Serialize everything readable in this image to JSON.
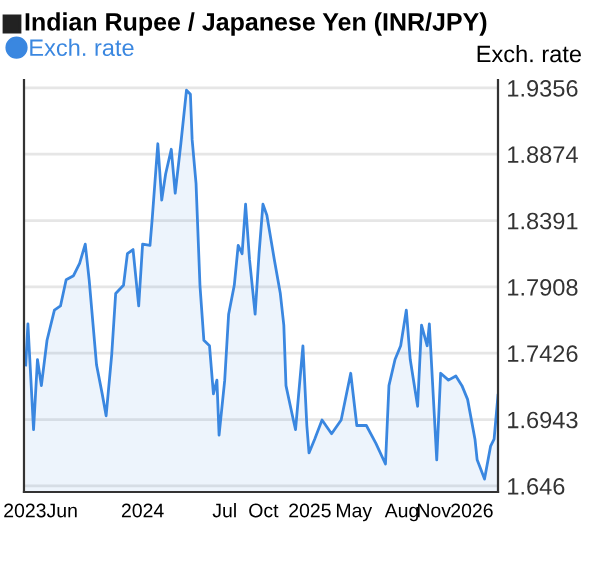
{
  "chart_data": {
    "type": "area",
    "title": "Indian Rupee / Japanese Yen (INR/JPY)",
    "ylabel": "Exch. rate",
    "x": [
      "2023-04-07",
      "2023-04-12",
      "2023-04-25",
      "2023-05-04",
      "2023-05-13",
      "2023-05-26",
      "2023-06-12",
      "2023-06-26",
      "2023-07-09",
      "2023-07-26",
      "2023-08-09",
      "2023-08-22",
      "2023-08-31",
      "2023-09-17",
      "2023-09-30",
      "2023-10-09",
      "2023-10-22",
      "2023-10-31",
      "2023-11-18",
      "2023-11-27",
      "2023-12-10",
      "2023-12-23",
      "2024-01-01",
      "2024-01-18",
      "2024-01-23",
      "2024-02-05",
      "2024-02-14",
      "2024-02-23",
      "2024-03-07",
      "2024-03-16",
      "2024-03-29",
      "2024-04-11",
      "2024-04-20",
      "2024-04-24",
      "2024-05-03",
      "2024-05-12",
      "2024-05-21",
      "2024-06-03",
      "2024-06-12",
      "2024-06-20",
      "2024-06-25",
      "2024-07-08",
      "2024-07-17",
      "2024-07-30",
      "2024-08-08",
      "2024-08-17",
      "2024-08-25",
      "2024-09-03",
      "2024-09-16",
      "2024-09-25",
      "2024-10-04",
      "2024-10-13",
      "2024-10-30",
      "2024-11-13",
      "2024-11-21",
      "2024-11-26",
      "2024-12-13",
      "2024-12-18",
      "2025-01-04",
      "2025-01-13",
      "2025-01-18",
      "2025-01-31",
      "2025-02-17",
      "2025-03-11",
      "2025-04-02",
      "2025-04-24",
      "2025-05-08",
      "2025-05-30",
      "2025-06-21",
      "2025-07-13",
      "2025-07-21",
      "2025-08-04",
      "2025-08-17",
      "2025-08-30",
      "2025-09-08",
      "2025-09-25",
      "2025-10-04",
      "2025-10-17",
      "2025-10-22",
      "2025-11-08",
      "2025-11-17",
      "2025-12-05",
      "2025-12-22",
      "2026-01-05",
      "2026-01-18",
      "2026-02-04",
      "2026-02-09",
      "2026-02-26",
      "2026-03-12",
      "2026-03-20",
      "2026-03-29"
    ],
    "series": [
      {
        "name": "Exch. rate",
        "color": "#3a87e0",
        "values": [
          1.734,
          1.764,
          1.687,
          1.738,
          1.719,
          1.752,
          1.774,
          1.777,
          1.796,
          1.799,
          1.808,
          1.822,
          1.796,
          1.734,
          1.713,
          1.697,
          1.742,
          1.786,
          1.792,
          1.815,
          1.818,
          1.777,
          1.822,
          1.821,
          1.84,
          1.895,
          1.854,
          1.873,
          1.891,
          1.859,
          1.895,
          1.934,
          1.931,
          1.898,
          1.866,
          1.792,
          1.752,
          1.748,
          1.713,
          1.723,
          1.683,
          1.723,
          1.771,
          1.792,
          1.821,
          1.815,
          1.851,
          1.811,
          1.771,
          1.815,
          1.851,
          1.843,
          1.811,
          1.786,
          1.763,
          1.719,
          1.694,
          1.687,
          1.748,
          1.69,
          1.67,
          1.68,
          1.694,
          1.684,
          1.694,
          1.728,
          1.69,
          1.69,
          1.677,
          1.662,
          1.719,
          1.738,
          1.748,
          1.774,
          1.738,
          1.704,
          1.763,
          1.748,
          1.764,
          1.665,
          1.728,
          1.723,
          1.726,
          1.719,
          1.709,
          1.68,
          1.665,
          1.651,
          1.675,
          1.68,
          1.712
        ]
      }
    ],
    "xlim": [
      "2023-04-03",
      "2026-03-29"
    ],
    "xticks": [
      {
        "value": "2023-04-05",
        "label": "2023"
      },
      {
        "value": "2023-06-30",
        "label": "Jun"
      },
      {
        "value": "2024-01-01",
        "label": "2024"
      },
      {
        "value": "2024-07-08",
        "label": "Jul"
      },
      {
        "value": "2024-10-05",
        "label": "Oct"
      },
      {
        "value": "2025-01-20",
        "label": "2025"
      },
      {
        "value": "2025-05-01",
        "label": "May"
      },
      {
        "value": "2025-08-20",
        "label": "Aug"
      },
      {
        "value": "2025-11-01",
        "label": "Nov"
      },
      {
        "value": "2026-01-28",
        "label": "2026"
      }
    ],
    "ylim": [
      1.6416,
      1.9414
    ],
    "yticks": [
      1.646,
      1.6943,
      1.7426,
      1.7908,
      1.8391,
      1.8874,
      1.9356
    ],
    "grid": "y",
    "legend": "top left"
  }
}
